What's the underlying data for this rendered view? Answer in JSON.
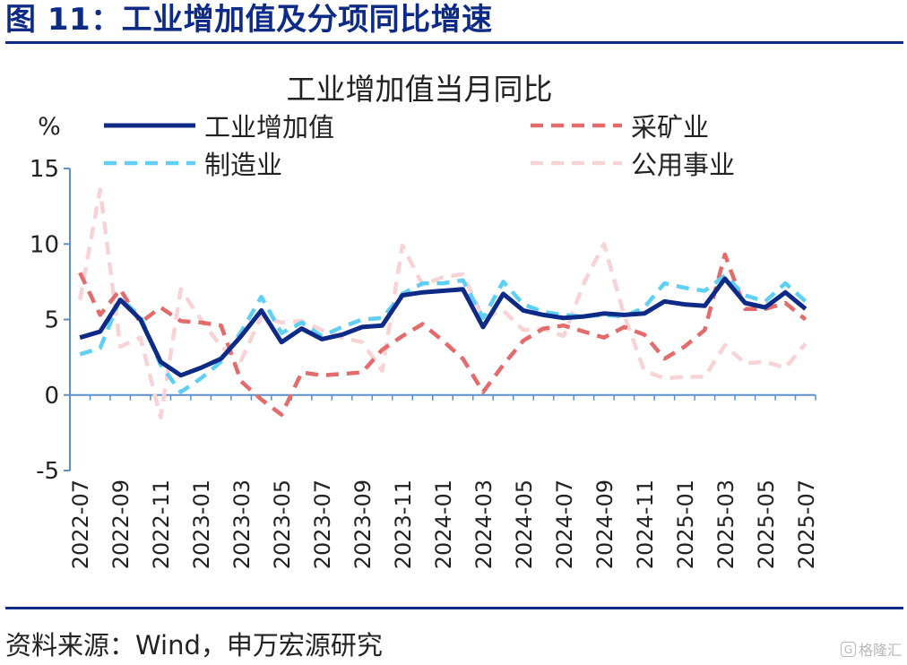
{
  "figure": {
    "title": "图 11：工业增加值及分项同比增速",
    "source": "资料来源：Wind，申万宏源研究",
    "watermark": "格隆汇",
    "watermark_badge": "G"
  },
  "chart_data": {
    "type": "line",
    "title": "工业增加值当月同比",
    "ylabel": "%",
    "xlabel": "",
    "ylim": [
      -5,
      15
    ],
    "yticks": [
      -5,
      0,
      5,
      10,
      15
    ],
    "grid": false,
    "legend": "top",
    "x": [
      "2022-07",
      "2022-08",
      "2022-09",
      "2022-10",
      "2022-11",
      "2022-12",
      "2023-01",
      "2023-02",
      "2023-03",
      "2023-04",
      "2023-05",
      "2023-06",
      "2023-07",
      "2023-08",
      "2023-09",
      "2023-10",
      "2023-11",
      "2023-12",
      "2024-01",
      "2024-02",
      "2024-03",
      "2024-04",
      "2024-05",
      "2024-06",
      "2024-07",
      "2024-08",
      "2024-09",
      "2024-10",
      "2024-11",
      "2024-12",
      "2025-01",
      "2025-02",
      "2025-03",
      "2025-04",
      "2025-05",
      "2025-06",
      "2025-07"
    ],
    "xtick_labels": [
      "2022-07",
      "2022-09",
      "2022-11",
      "2023-01",
      "2023-03",
      "2023-05",
      "2023-07",
      "2023-09",
      "2023-11",
      "2024-01",
      "2024-03",
      "2024-05",
      "2024-07",
      "2024-09",
      "2024-11",
      "2025-01",
      "2025-03",
      "2025-05",
      "2025-07"
    ],
    "series": [
      {
        "name": "工业增加值",
        "color": "#0d2a86",
        "dash": "solid",
        "values": [
          3.8,
          4.2,
          6.3,
          5.0,
          2.2,
          1.3,
          1.8,
          2.4,
          3.9,
          5.6,
          3.5,
          4.4,
          3.7,
          4.0,
          4.5,
          4.6,
          6.6,
          6.8,
          6.9,
          7.0,
          4.5,
          6.7,
          5.6,
          5.3,
          5.1,
          5.2,
          5.4,
          5.3,
          5.4,
          6.2,
          6.0,
          5.9,
          7.7,
          6.1,
          5.8,
          6.8,
          5.7
        ]
      },
      {
        "name": "采矿业",
        "color": "#e46b6b",
        "dash": "dashed",
        "values": [
          8.1,
          5.3,
          7.0,
          4.8,
          5.8,
          4.9,
          4.8,
          4.6,
          0.9,
          -0.3,
          -1.3,
          1.5,
          1.3,
          1.4,
          1.5,
          3.0,
          3.9,
          4.7,
          3.6,
          2.4,
          0.2,
          2.0,
          3.6,
          4.4,
          4.6,
          4.2,
          3.8,
          4.5,
          4.0,
          2.4,
          3.2,
          4.3,
          9.3,
          5.7,
          5.7,
          6.1,
          5.0
        ]
      },
      {
        "name": "制造业",
        "color": "#5fd0f3",
        "dash": "dashed",
        "values": [
          2.7,
          3.1,
          6.4,
          5.2,
          2.0,
          0.2,
          1.1,
          2.2,
          4.2,
          6.5,
          4.1,
          4.8,
          3.9,
          4.5,
          5.0,
          5.1,
          6.7,
          7.4,
          7.4,
          7.6,
          5.1,
          7.5,
          6.0,
          5.5,
          5.3,
          5.2,
          5.3,
          5.2,
          5.8,
          7.4,
          7.1,
          6.9,
          7.9,
          6.6,
          6.2,
          7.4,
          6.2
        ]
      },
      {
        "name": "公用事业",
        "color": "#f7d3d6",
        "dash": "dashed",
        "values": [
          6.3,
          13.6,
          3.2,
          3.8,
          -1.5,
          7.0,
          5.0,
          3.2,
          2.3,
          5.2,
          4.8,
          4.9,
          4.3,
          3.8,
          3.5,
          1.6,
          9.9,
          7.3,
          7.8,
          8.0,
          5.1,
          5.6,
          4.3,
          4.4,
          3.9,
          7.4,
          10.0,
          5.3,
          1.6,
          1.1,
          1.2,
          1.2,
          3.3,
          2.1,
          2.2,
          1.8,
          3.4
        ]
      }
    ]
  }
}
